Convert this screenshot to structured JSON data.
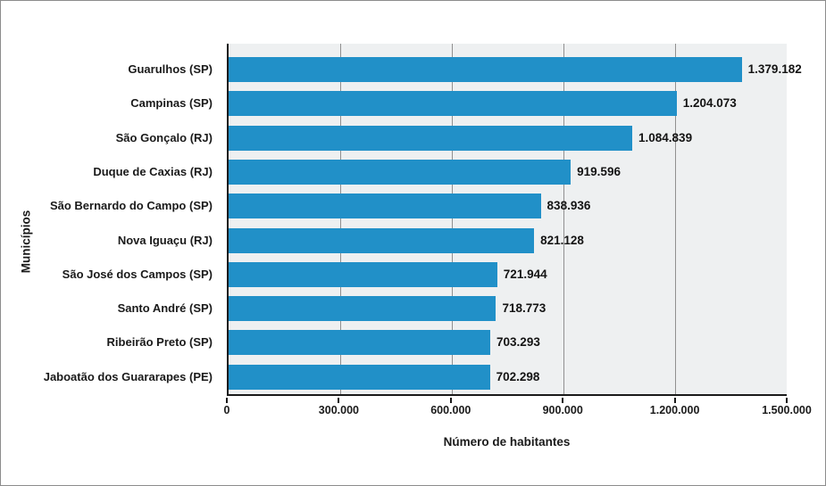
{
  "chart_data": {
    "type": "bar",
    "orientation": "horizontal",
    "title": "",
    "xlabel": "Número de habitantes",
    "ylabel": "Municípios",
    "xlim": [
      0,
      1500000
    ],
    "grid": "vertical",
    "legend": "none",
    "categories": [
      "Guarulhos (SP)",
      "Campinas (SP)",
      "São Gonçalo (RJ)",
      "Duque de Caxias (RJ)",
      "São Bernardo do Campo (SP)",
      "Nova Iguaçu (RJ)",
      "São José dos Campos (SP)",
      "Santo André (SP)",
      "Ribeirão Preto (SP)",
      "Jaboatão dos Guararapes (PE)"
    ],
    "values": [
      1379182,
      1204073,
      1084839,
      919596,
      838936,
      821128,
      721944,
      718773,
      703293,
      702298
    ],
    "value_labels": [
      "1.379.182",
      "1.204.073",
      "1.084.839",
      "919.596",
      "838.936",
      "821.128",
      "721.944",
      "718.773",
      "703.293",
      "702.298"
    ],
    "x_tick_values": [
      0,
      300000,
      600000,
      900000,
      1200000,
      1500000
    ],
    "x_tick_labels": [
      "0",
      "300.000",
      "600.000",
      "900.000",
      "1.200.000",
      "1.500.000"
    ],
    "colors": {
      "bar": "#2190c8",
      "plot_background": "#eef0f1",
      "gridline": "#909090",
      "axis": "#1a1a1a",
      "text": "#1a1a1a",
      "frame": "#8c8c8c"
    }
  }
}
